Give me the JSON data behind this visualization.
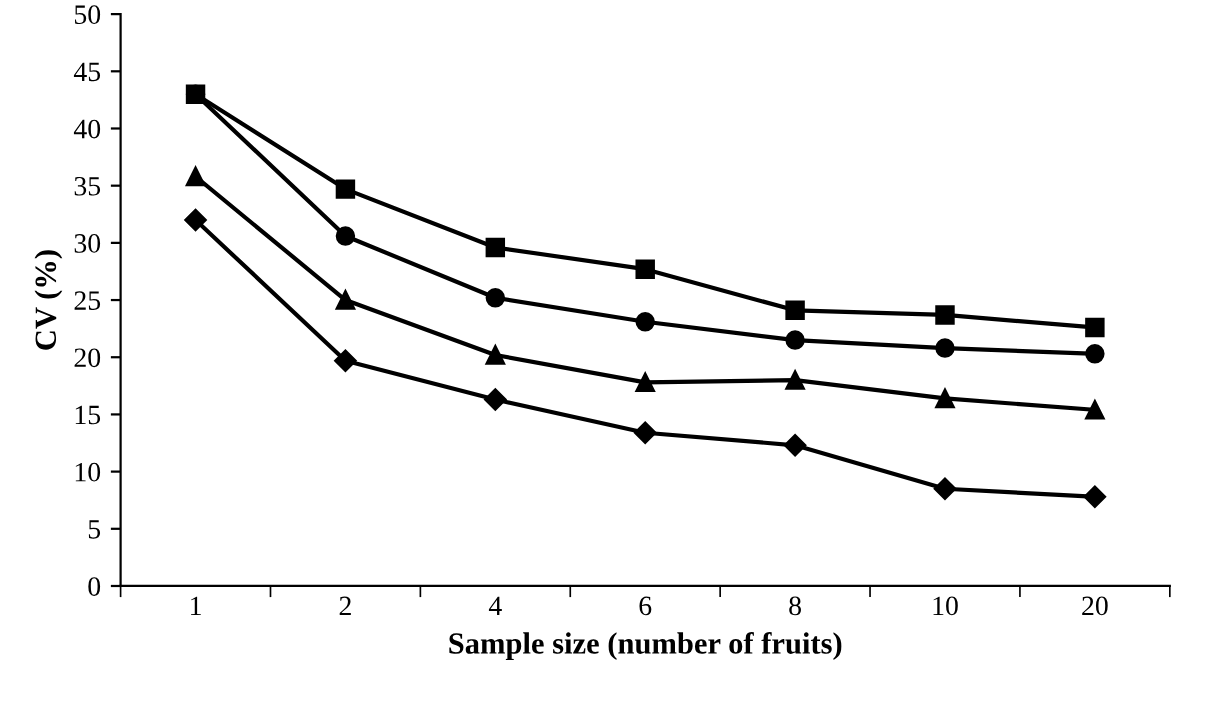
{
  "chart_data": {
    "type": "line",
    "xlabel": "Sample size (number of fruits)",
    "ylabel": "CV (%)",
    "categories": [
      "1",
      "2",
      "4",
      "6",
      "8",
      "10",
      "20"
    ],
    "series": [
      {
        "color": "#000000",
        "marker": "circle",
        "values": [
          43,
          30.6,
          25.2,
          23.1,
          21.5,
          20.8,
          20.3
        ]
      },
      {
        "color": "#000000",
        "marker": "square",
        "values": [
          43,
          34.7,
          29.6,
          27.7,
          24.1,
          23.7,
          22.6
        ]
      },
      {
        "color": "#000000",
        "marker": "triangle",
        "values": [
          35.8,
          25,
          20.2,
          17.8,
          18.0,
          16.4,
          15.4
        ]
      },
      {
        "color": "#000000",
        "marker": "diamond",
        "values": [
          32,
          19.7,
          16.3,
          13.4,
          12.3,
          8.5,
          7.8
        ]
      }
    ],
    "ylim": [
      0,
      50
    ],
    "yticks": [
      0,
      5,
      10,
      15,
      20,
      25,
      30,
      35,
      40,
      45,
      50
    ],
    "grid": false,
    "legend": false
  }
}
